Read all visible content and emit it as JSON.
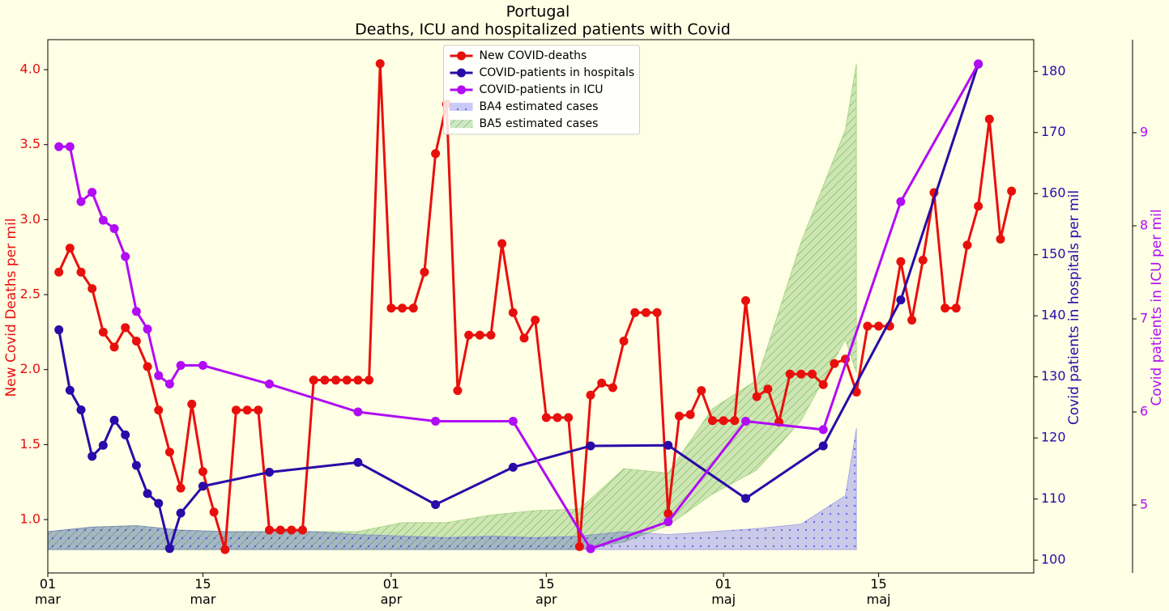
{
  "chart_data": {
    "type": "line",
    "title": "Portugal",
    "subtitle": "Deaths, ICU and hospitalized patients with Covid",
    "ylabel": "New Covid Deaths per mil",
    "y2label": "Covid patients in hospitals per mil",
    "y3label": "Covid patients in ICU per mil",
    "xlim": [
      "03-01",
      "05-29"
    ],
    "xticks": [
      {
        "value": "03-01",
        "label": "01\nmar"
      },
      {
        "value": "03-15",
        "label": "15\nmar"
      },
      {
        "value": "04-01",
        "label": "01\napr"
      },
      {
        "value": "04-15",
        "label": "15\napr"
      },
      {
        "value": "05-01",
        "label": "01\nmaj"
      },
      {
        "value": "05-15",
        "label": "15\nmaj"
      }
    ],
    "ylim": [
      0.644,
      4.2
    ],
    "yticks": [
      {
        "value": 1,
        "label": "1.0"
      },
      1.5,
      {
        "value": 2,
        "label": "2.0"
      },
      2.5,
      {
        "value": 3,
        "label": "3.0"
      },
      3.5,
      {
        "value": 4,
        "label": "4.0"
      }
    ],
    "y2lim": [
      97.9,
      185.2
    ],
    "y2ticks": [
      100,
      110,
      120,
      130,
      140,
      150,
      160,
      170,
      180
    ],
    "y3lim": [
      4.27,
      10.0
    ],
    "y3ticks": [
      5,
      6,
      7,
      8,
      9
    ],
    "ycolor": "#e8100c",
    "y2color": "#2a0aa8",
    "y3color": "#b10cf5",
    "legend": "upper center",
    "series": [
      {
        "name": "New COVID-deaths",
        "color": "#e8100c",
        "axis": "y",
        "x": [
          "03-02",
          "03-03",
          "03-04",
          "03-05",
          "03-06",
          "03-07",
          "03-08",
          "03-09",
          "03-10",
          "03-11",
          "03-12",
          "03-13",
          "03-14",
          "03-15",
          "03-16",
          "03-17",
          "03-18",
          "03-19",
          "03-20",
          "03-21",
          "03-22",
          "03-23",
          "03-24",
          "03-25",
          "03-26",
          "03-27",
          "03-28",
          "03-29",
          "03-30",
          "03-31",
          "04-01",
          "04-02",
          "04-03",
          "04-04",
          "04-05",
          "04-06",
          "04-07",
          "04-08",
          "04-09",
          "04-10",
          "04-11",
          "04-12",
          "04-13",
          "04-14",
          "04-15",
          "04-16",
          "04-17",
          "04-18",
          "04-19",
          "04-20",
          "04-21",
          "04-22",
          "04-23",
          "04-24",
          "04-25",
          "04-26",
          "04-27",
          "04-28",
          "04-29",
          "04-30",
          "05-01",
          "05-02",
          "05-03",
          "05-04",
          "05-05",
          "05-06",
          "05-07",
          "05-08",
          "05-09",
          "05-10",
          "05-11",
          "05-12",
          "05-13",
          "05-14",
          "05-15",
          "05-16",
          "05-17",
          "05-18",
          "05-19",
          "05-20",
          "05-21",
          "05-22",
          "05-23",
          "05-24",
          "05-25",
          "05-26",
          "05-27"
        ],
        "values": [
          2.65,
          2.81,
          2.65,
          2.54,
          2.25,
          2.15,
          2.28,
          2.19,
          2.02,
          1.73,
          1.45,
          1.21,
          1.77,
          1.32,
          1.05,
          0.8,
          1.73,
          1.73,
          1.73,
          0.93,
          0.93,
          0.93,
          0.93,
          1.93,
          1.93,
          1.93,
          1.93,
          1.93,
          1.93,
          4.04,
          2.41,
          2.41,
          2.41,
          2.65,
          3.44,
          3.77,
          1.86,
          2.23,
          2.23,
          2.23,
          2.84,
          2.38,
          2.21,
          2.33,
          1.68,
          1.68,
          1.68,
          0.82,
          1.83,
          1.91,
          1.88,
          2.19,
          2.38,
          2.38,
          2.38,
          1.04,
          1.69,
          1.7,
          1.86,
          1.66,
          1.66,
          1.66,
          2.46,
          1.82,
          1.87,
          1.65,
          1.97,
          1.97,
          1.97,
          1.9,
          2.04,
          2.07,
          1.85,
          2.29,
          2.29,
          2.29,
          2.72,
          2.33,
          2.73,
          3.18,
          2.41,
          2.41,
          2.83,
          3.09,
          3.67,
          2.87,
          3.19
        ]
      },
      {
        "name": "COVID-patients in hospitals",
        "color": "#2a0aa8",
        "axis": "y2",
        "x": [
          "03-02",
          "03-03",
          "03-04",
          "03-05",
          "03-06",
          "03-07",
          "03-08",
          "03-09",
          "03-10",
          "03-11",
          "03-12",
          "03-13",
          "03-15",
          "03-21",
          "03-29",
          "04-05",
          "04-12",
          "04-19",
          "04-26",
          "05-03",
          "05-10",
          "05-17",
          "05-24"
        ],
        "values": [
          137.7,
          127.8,
          124.6,
          117.0,
          118.8,
          122.9,
          120.5,
          115.5,
          110.9,
          109.3,
          101.9,
          107.7,
          112.1,
          114.4,
          116.0,
          109.1,
          115.2,
          118.7,
          118.8,
          110.1,
          118.7,
          142.6,
          181.2
        ]
      },
      {
        "name": "COVID-patients in ICU",
        "color": "#b10cf5",
        "axis": "y3",
        "x": [
          "03-02",
          "03-03",
          "03-04",
          "03-05",
          "03-06",
          "03-07",
          "03-08",
          "03-09",
          "03-10",
          "03-11",
          "03-12",
          "03-13",
          "03-15",
          "03-21",
          "03-29",
          "04-05",
          "04-12",
          "04-19",
          "04-26",
          "05-03",
          "05-10",
          "05-17",
          "05-24"
        ],
        "values": [
          8.85,
          8.85,
          8.26,
          8.36,
          8.06,
          7.97,
          7.67,
          7.08,
          6.89,
          6.39,
          6.3,
          6.5,
          6.5,
          6.3,
          6.0,
          5.9,
          5.9,
          4.53,
          4.82,
          5.9,
          5.81,
          8.26,
          9.74
        ]
      },
      {
        "name": "BA4 estimated cases",
        "color": "#2b2bf0",
        "axis": "y",
        "type": "area",
        "hatch": "dots",
        "x": [
          "03-01",
          "03-05",
          "03-09",
          "03-13",
          "03-17",
          "03-21",
          "03-25",
          "03-29",
          "04-02",
          "04-06",
          "04-10",
          "04-14",
          "04-18",
          "04-22",
          "04-26",
          "04-30",
          "05-04",
          "05-08",
          "05-12",
          "05-13"
        ],
        "lower": [
          0.8,
          0.8,
          0.8,
          0.8,
          0.8,
          0.8,
          0.8,
          0.8,
          0.8,
          0.8,
          0.8,
          0.8,
          0.8,
          0.8,
          0.8,
          0.8,
          0.8,
          0.8,
          0.8,
          0.8
        ],
        "values": [
          0.92,
          0.95,
          0.96,
          0.93,
          0.92,
          0.92,
          0.92,
          0.9,
          0.89,
          0.88,
          0.89,
          0.88,
          0.89,
          0.92,
          0.9,
          0.92,
          0.94,
          0.97,
          1.16,
          1.61
        ]
      },
      {
        "name": "BA5 estimated cases",
        "color": "#3a9a1a",
        "axis": "y",
        "type": "area",
        "hatch": "diagonal",
        "x": [
          "03-01",
          "03-05",
          "03-09",
          "03-13",
          "03-17",
          "03-21",
          "03-25",
          "03-29",
          "04-02",
          "04-06",
          "04-10",
          "04-14",
          "04-18",
          "04-22",
          "04-26",
          "04-30",
          "05-04",
          "05-08",
          "05-12",
          "05-13"
        ],
        "lower": [
          0.8,
          0.8,
          0.8,
          0.8,
          0.8,
          0.8,
          0.8,
          0.8,
          0.8,
          0.8,
          0.8,
          0.8,
          0.8,
          0.85,
          0.96,
          1.17,
          1.33,
          1.66,
          2.2,
          1.98
        ],
        "values": [
          0.92,
          0.95,
          0.96,
          0.93,
          0.92,
          0.92,
          0.92,
          0.92,
          0.98,
          0.98,
          1.03,
          1.06,
          1.07,
          1.34,
          1.31,
          1.74,
          1.93,
          2.85,
          3.6,
          4.04
        ]
      }
    ]
  }
}
